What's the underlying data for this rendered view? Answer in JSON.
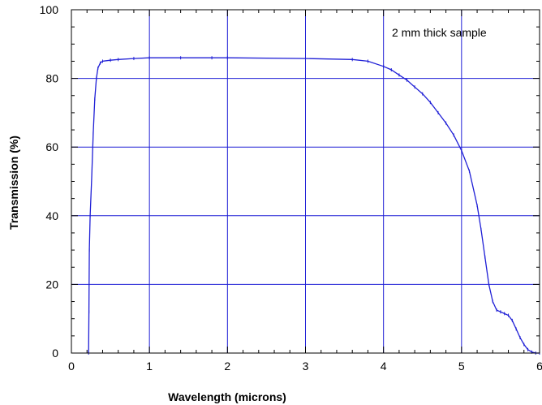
{
  "chart_data": {
    "type": "line",
    "title": "",
    "xlabel": "Wavelength (microns)",
    "ylabel": "Transmission (%)",
    "xlim": [
      0,
      6
    ],
    "ylim": [
      0,
      100
    ],
    "x_ticks": [
      "0",
      "1",
      "2",
      "3",
      "4",
      "5",
      "6"
    ],
    "y_ticks": [
      "0",
      "20",
      "40",
      "60",
      "80",
      "100"
    ],
    "grid": true,
    "legend": "none",
    "annotation": "2 mm thick sample",
    "colors": {
      "line": "#1f1fd6",
      "grid": "#1f1fd6",
      "axis": "#000000"
    },
    "series": [
      {
        "x": [
          0.22,
          0.225,
          0.23,
          0.24,
          0.26,
          0.28,
          0.3,
          0.32,
          0.34,
          0.37,
          0.4,
          0.5,
          0.6,
          0.8,
          1.0,
          1.4,
          1.8,
          2.0,
          3.0,
          3.6,
          3.8,
          4.0,
          4.1,
          4.2,
          4.3,
          4.4,
          4.5,
          4.6,
          4.7,
          4.8,
          4.9,
          5.0,
          5.1,
          5.2,
          5.25,
          5.3,
          5.35,
          5.4,
          5.45,
          5.5,
          5.55,
          5.6,
          5.65,
          5.7,
          5.75,
          5.8,
          5.85,
          5.9,
          5.95,
          6.0
        ],
        "y": [
          0,
          12,
          30,
          40,
          51,
          64,
          74,
          80,
          83,
          84.5,
          85,
          85.3,
          85.5,
          85.8,
          86,
          86,
          86,
          86,
          85.8,
          85.5,
          85,
          83.5,
          82.5,
          81,
          79.5,
          77.5,
          75.5,
          73,
          70,
          67,
          63.5,
          59,
          53,
          43,
          36,
          28,
          20,
          15,
          12.5,
          12,
          11.5,
          11,
          9.5,
          7,
          4.5,
          2.5,
          1,
          0.3,
          0,
          0
        ]
      }
    ]
  }
}
